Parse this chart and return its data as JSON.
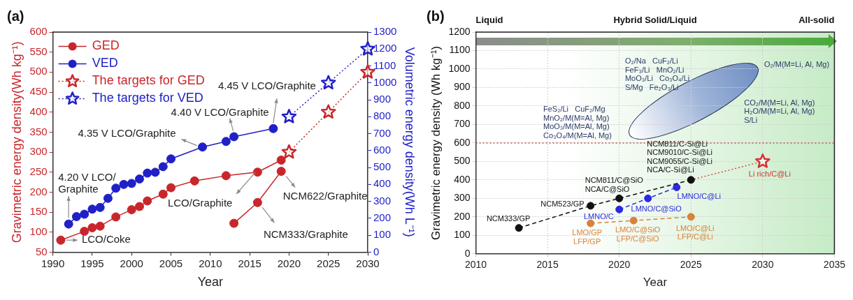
{
  "chart_data": [
    {
      "type": "line",
      "title": "(a)",
      "xlabel": "Year",
      "ylabel": "Gravimetric energy density(Wh kg⁻¹)",
      "y2label": "Volumetric energy density(Wh L⁻¹)",
      "xlim": [
        1990,
        2030
      ],
      "xticks": [
        1990,
        1995,
        2000,
        2005,
        2010,
        2015,
        2020,
        2025,
        2030
      ],
      "ylim": [
        50,
        600
      ],
      "yticks": [
        50,
        100,
        150,
        200,
        250,
        300,
        350,
        400,
        450,
        500,
        550,
        600
      ],
      "y2lim": [
        0,
        1300
      ],
      "y2ticks": [
        0,
        100,
        200,
        300,
        400,
        500,
        600,
        700,
        800,
        900,
        1000,
        1100,
        1200,
        1300
      ],
      "legend": "top left",
      "marker": "circle",
      "line_style": "solid",
      "series": [
        {
          "name": "GED",
          "color": "#c8262b",
          "x": [
            1991,
            1994,
            1995,
            1996,
            1998,
            2000,
            2001,
            2002,
            2004,
            2005,
            2008,
            2012,
            2016,
            2019
          ],
          "values": [
            80,
            102,
            111,
            115,
            138,
            156,
            164,
            178,
            195,
            211,
            228,
            241,
            250,
            280
          ]
        },
        {
          "color": "#c8262b",
          "x": [
            2013,
            2016,
            2019
          ],
          "values": [
            122,
            174,
            252
          ]
        },
        {
          "name": "VED",
          "color": "#2020c8",
          "axis": "y2",
          "x": [
            1992,
            1993,
            1994,
            1995,
            1996,
            1997,
            1998,
            1999,
            2000,
            2001,
            2002,
            2003,
            2004,
            2005,
            2009,
            2012,
            2013,
            2018
          ],
          "values": [
            166,
            210,
            224,
            254,
            264,
            318,
            378,
            400,
            406,
            432,
            467,
            472,
            505,
            551,
            621,
            654,
            682,
            730
          ]
        },
        {
          "name": "The targets for GED",
          "color": "#c8262b",
          "marker": "star",
          "line_style": "dotted",
          "x": [
            2020,
            2025,
            2030
          ],
          "values": [
            300,
            400,
            500
          ]
        },
        {
          "name": "The targets for VED",
          "color": "#2020c8",
          "axis": "y2",
          "marker": "star",
          "line_style": "dotted",
          "x": [
            2020,
            2025,
            2030
          ],
          "values": [
            800,
            1000,
            1200
          ]
        }
      ],
      "annotations": [
        {
          "text": "4.20 V LCO/\nGraphite",
          "x": 1992,
          "y": 120
        },
        {
          "text": "LCO/Coke",
          "x": 1991,
          "y": 80
        },
        {
          "text": "4.35 V LCO/Graphite",
          "x": 2009,
          "y": 313
        },
        {
          "text": "4.40 V LCO/Graphite",
          "x": 2013,
          "y": 339
        },
        {
          "text": "4.45 V LCO/Graphite",
          "x": 2018,
          "y": 359
        },
        "LCO/Graphite",
        {
          "text": "NCM622/Graphite",
          "x": 2019,
          "y": 252
        },
        {
          "text": "NCM333/Graphite",
          "x": 2016,
          "y": 174
        }
      ]
    },
    {
      "type": "line",
      "title": "(b)",
      "xlabel": "Year",
      "ylabel": "Gravimetric energy density (Wh kg⁻¹)",
      "xlim": [
        2010,
        2035
      ],
      "xticks": [
        2010,
        2015,
        2020,
        2025,
        2030,
        2035
      ],
      "ylim": [
        0,
        1200
      ],
      "yticks": [
        0,
        100,
        200,
        300,
        400,
        500,
        600,
        700,
        800,
        900,
        1000,
        1100,
        1200
      ],
      "grid": true,
      "marker": "circle",
      "line_style": "dashed",
      "series": [
        {
          "color": "#111111",
          "x": [
            2013,
            2018,
            2020,
            2025
          ],
          "values": [
            140,
            260,
            300,
            400
          ]
        },
        {
          "color": "#2a2ae0",
          "x": [
            2020,
            2022,
            2024
          ],
          "values": [
            240,
            300,
            360
          ]
        },
        {
          "color": "#d9823b",
          "x": [
            2018,
            2021,
            2025
          ],
          "values": [
            165,
            180,
            200
          ]
        },
        {
          "color": "#d63030",
          "marker": "star",
          "line_style": "dotted",
          "x": [
            2025,
            2030
          ],
          "values": [
            400,
            500
          ]
        }
      ],
      "ref_lines": [
        {
          "axis": "y",
          "value": 600,
          "color": "#c0504d",
          "line_style": "dotted"
        }
      ],
      "annotations": [
        {
          "text": "NCM333/GP",
          "x": 2013,
          "y": 140
        },
        {
          "text": "NCM523/GP",
          "x": 2018,
          "y": 260
        },
        {
          "text": "NCM811/C@SiO\nNCA/C@SiO",
          "x": 2020,
          "y": 300
        },
        {
          "text": "NCM811/C-Si@Li\nNCM9010/C-Si@Li\nNCM9055/C-Si@Li\nNCA/C-Si@Li",
          "x": 2025,
          "y": 400
        },
        {
          "text": "LMNO/C",
          "x": 2020,
          "y": 240
        },
        {
          "text": "LMNO/C@SiO",
          "x": 2022,
          "y": 300
        },
        {
          "text": "LMNO/C@Li",
          "x": 2024,
          "y": 360
        },
        {
          "text": "LMO/GP\nLFP/GP",
          "x": 2018,
          "y": 165
        },
        {
          "text": "LMO/C@SiO\nLFP/C@SiO",
          "x": 2021,
          "y": 180
        },
        {
          "text": "LMO/C@Li\nLFP/C@Li",
          "x": 2025,
          "y": 200
        },
        {
          "text": "Li rich/C@Li",
          "x": 2030,
          "y": 500
        },
        "Liquid",
        "Hybrid Solid/Liquid",
        "All-solid",
        "FeS₂/Li   CuF₂/Mg\nMnO₂/M(M=Al, Mg)\nMoO₃/M(M=Al, Mg)\nCo₃O₄/M(M=Al, Mg)",
        "O₂/Na   CuF₂/Li\nFeF₃/Li   MnO₂/Li\nMoO₃/Li   Co₃O₄/Li\nS/Mg   Fe₂O₃/Li",
        "O₂/M(M=Li, Al, Mg)",
        "CO₂/M(M=Li, Al, Mg)\nH₂O/M(M=Li, Al, Mg)\nS/Li"
      ]
    }
  ]
}
